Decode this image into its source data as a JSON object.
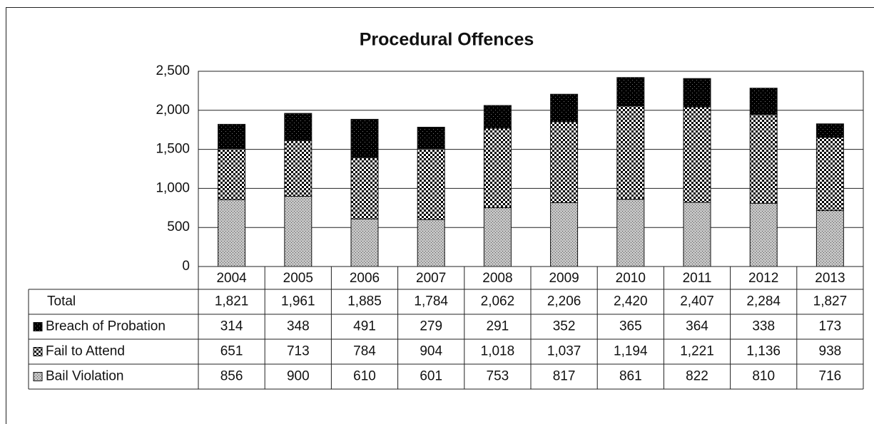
{
  "chart_data": {
    "type": "stacked_bar",
    "title": "Procedural Offences",
    "categories": [
      "2004",
      "2005",
      "2006",
      "2007",
      "2008",
      "2009",
      "2010",
      "2011",
      "2012",
      "2013"
    ],
    "series": [
      {
        "name": "Bail Violation",
        "color": "#c4c4c4",
        "values": [
          856,
          900,
          610,
          601,
          753,
          817,
          861,
          822,
          810,
          716
        ],
        "value_labels": [
          "856",
          "900",
          "610",
          "601",
          "753",
          "817",
          "861",
          "822",
          "810",
          "716"
        ]
      },
      {
        "name": "Fail to Attend",
        "color": "#ffffff",
        "values": [
          651,
          713,
          784,
          904,
          1018,
          1037,
          1194,
          1221,
          1136,
          938
        ],
        "value_labels": [
          "651",
          "713",
          "784",
          "904",
          "1,018",
          "1,037",
          "1,194",
          "1,221",
          "1,136",
          "938"
        ]
      },
      {
        "name": "Breach of Probation",
        "color": "#000000",
        "values": [
          314,
          348,
          491,
          279,
          291,
          352,
          365,
          364,
          338,
          173
        ],
        "value_labels": [
          "314",
          "348",
          "491",
          "279",
          "291",
          "352",
          "365",
          "364",
          "338",
          "173"
        ]
      }
    ],
    "totals": {
      "label": "Total",
      "values": [
        1821,
        1961,
        1885,
        1784,
        2062,
        2206,
        2420,
        2407,
        2284,
        1827
      ],
      "value_labels": [
        "1,821",
        "1,961",
        "1,885",
        "1,784",
        "2,062",
        "2,206",
        "2,420",
        "2,407",
        "2,284",
        "1,827"
      ]
    },
    "ylim": [
      0,
      2500
    ],
    "yticks": [
      0,
      500,
      {
        "value": 1000,
        "label": "1,000"
      },
      {
        "value": 1500,
        "label": "1,500"
      },
      {
        "value": 2000,
        "label": "2,000"
      },
      {
        "value": 2500,
        "label": "2,500"
      }
    ],
    "grid": true
  }
}
